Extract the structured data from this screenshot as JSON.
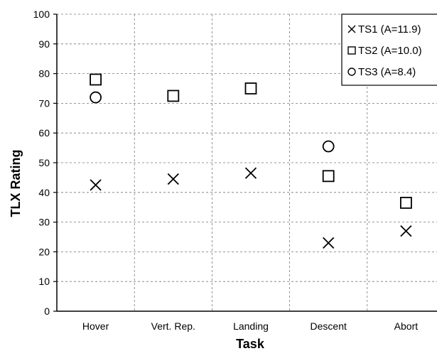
{
  "chart_data": {
    "type": "scatter",
    "title": "",
    "xlabel": "Task",
    "ylabel": "TLX Rating",
    "categories": [
      "Hover",
      "Vert. Rep.",
      "Landing",
      "Descent",
      "Abort"
    ],
    "ylim": [
      0,
      100
    ],
    "yticks": [
      0,
      10,
      20,
      30,
      40,
      50,
      60,
      70,
      80,
      90,
      100
    ],
    "grid": "dashed vertical and horizontal",
    "legend_position": "top-right",
    "series": [
      {
        "name": "TS1 (A=11.9)",
        "marker": "x",
        "values": [
          42.5,
          44.5,
          46.5,
          23,
          27
        ]
      },
      {
        "name": "TS2 (A=10.0)",
        "marker": "square",
        "values": [
          78,
          72.5,
          75,
          45.5,
          36.5
        ]
      },
      {
        "name": "TS3 (A=8.4)",
        "marker": "circle",
        "values": [
          72,
          null,
          null,
          55.5,
          null
        ]
      }
    ]
  }
}
